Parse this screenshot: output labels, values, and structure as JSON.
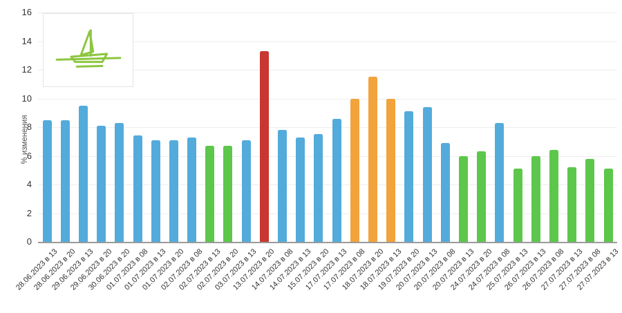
{
  "chart_data": {
    "type": "bar",
    "title": "",
    "xlabel": "",
    "ylabel": "% изменения",
    "ylim": [
      0,
      16
    ],
    "yticks": [
      0,
      2,
      4,
      6,
      8,
      10,
      12,
      14,
      16
    ],
    "grid": true,
    "legend_position": "top-left",
    "legend_icon": "sailboat-icon",
    "categories": [
      "28.06.2023 в 13",
      "28.06.2023 в 20",
      "29.06.2023 в 13",
      "29.06.2023 в 20",
      "30.06.2023 в 20",
      "01.07.2023 в 08",
      "01.07.2023 в 13",
      "01.07.2023 в 20",
      "02.07.2023 в 08",
      "02.07.2023 в 13",
      "02.07.2023 в 20",
      "03.07.2023 в 13",
      "13.07.2023 в 20",
      "14.07.2023 в 08",
      "14.07.2023 в 13",
      "15.07.2023 в 20",
      "17.07.2023 в 13",
      "17.07.2023 в 08",
      "18.07.2023 в 20",
      "18.07.2023 в 13",
      "19.07.2023 в 20",
      "20.07.2023 в 13",
      "20.07.2023 в 08",
      "20.07.2023 в 13",
      "24.07.2023 в 20",
      "24.07.2023 в 08",
      "25.07.2023 в 13",
      "26.07.2023 в 13",
      "26.07.2023 в 08",
      "27.07.2023 в 13",
      "27.07.2023 в 08",
      "27.07.2023 в 13"
    ],
    "values": [
      8.5,
      8.5,
      9.5,
      8.1,
      8.3,
      7.4,
      7.1,
      7.1,
      7.3,
      6.7,
      6.7,
      7.1,
      13.3,
      7.8,
      7.3,
      7.5,
      8.6,
      10.0,
      11.5,
      10.0,
      9.1,
      9.4,
      6.9,
      6.0,
      6.3,
      8.3,
      5.1,
      6.0,
      6.4,
      5.2,
      5.8,
      5.1
    ],
    "bar_colors": [
      "blue",
      "blue",
      "blue",
      "blue",
      "blue",
      "blue",
      "blue",
      "blue",
      "blue",
      "green",
      "green",
      "blue",
      "red",
      "blue",
      "blue",
      "blue",
      "blue",
      "orange",
      "orange",
      "orange",
      "blue",
      "blue",
      "blue",
      "green",
      "green",
      "blue",
      "green",
      "green",
      "green",
      "green",
      "green",
      "green"
    ],
    "palette": {
      "blue": "#53ABDB",
      "green": "#5CC74B",
      "orange": "#F2A33C",
      "red": "#C83732"
    },
    "icon_color": "#8CC63F",
    "grid_color": "#EDEDED",
    "axis_color": "#9A9A9A",
    "text_color": "#333333"
  }
}
